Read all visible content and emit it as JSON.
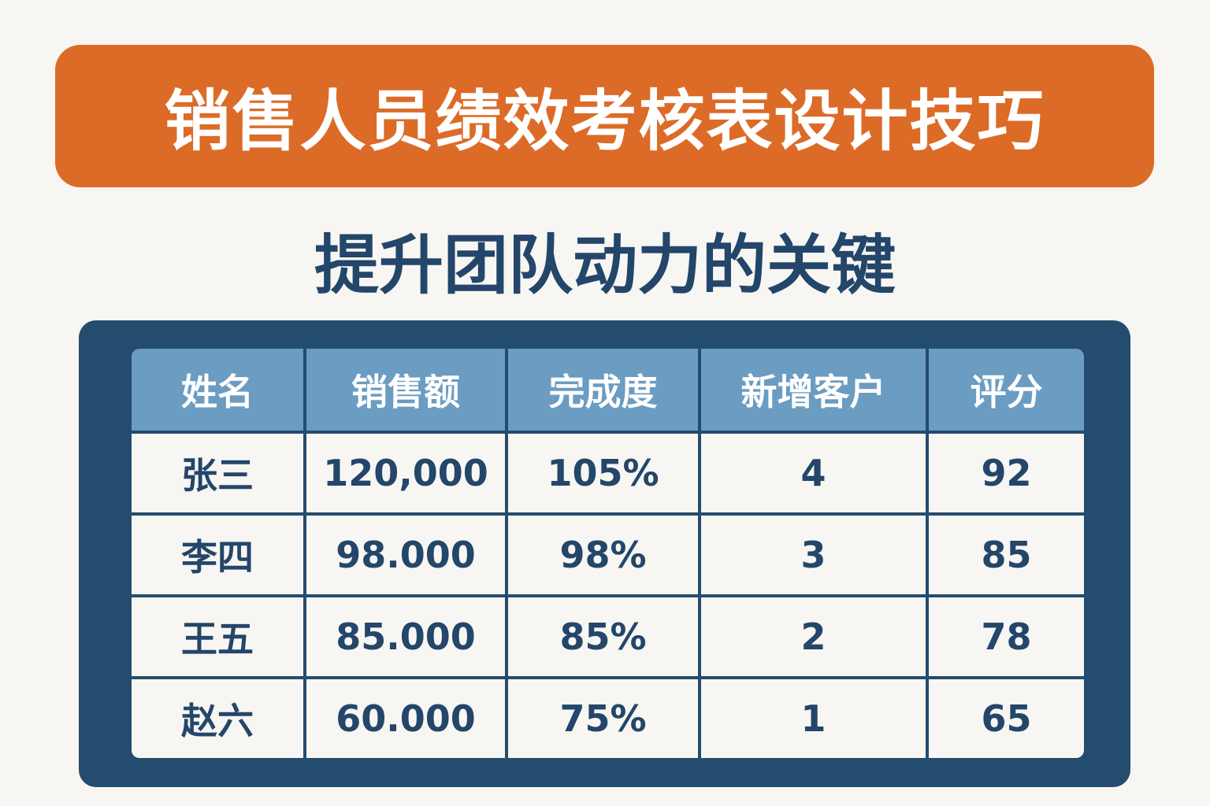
{
  "title": "销售人员绩效考核表设计技巧",
  "subtitle": "提升团队动力的关键",
  "colors": {
    "banner": "#dc6b28",
    "panel": "#244c6e",
    "header": "#6b9cc2",
    "text": "#23466a",
    "background": "#f8f6f2"
  },
  "table": {
    "headers": [
      "姓名",
      "销售额",
      "完成度",
      "新增客户",
      "评分"
    ],
    "rows": [
      [
        "张三",
        "120,000",
        "105%",
        "4",
        "92"
      ],
      [
        "李四",
        "98.000",
        "98%",
        "3",
        "85"
      ],
      [
        "王五",
        "85.000",
        "85%",
        "2",
        "78"
      ],
      [
        "赵六",
        "60.000",
        "75%",
        "1",
        "65"
      ]
    ]
  }
}
